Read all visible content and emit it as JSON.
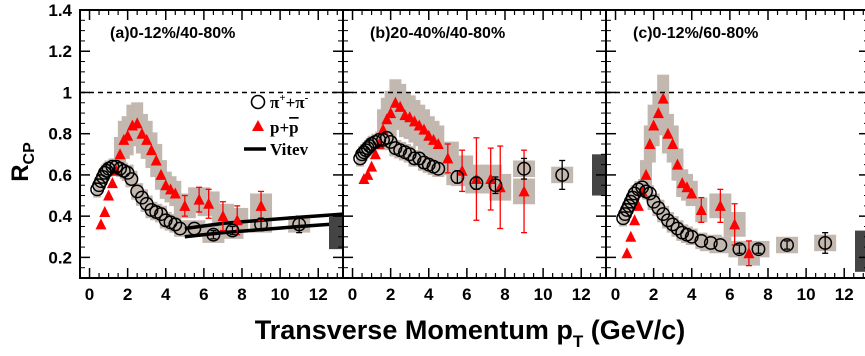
{
  "chart_data": {
    "type": "scatter",
    "xlabel": "Transverse Momentum p",
    "xlabel_sub": "T",
    "xlabel_unit": " (GeV/c)",
    "ylabel": "R",
    "ylabel_sub": "CP",
    "ylim": [
      0.1,
      1.4
    ],
    "xlim": [
      -0.5,
      13.3
    ],
    "yticks": [
      "0.2",
      "0.4",
      "0.6",
      "0.8",
      "1",
      "1.2",
      "1.4"
    ],
    "xticks": [
      "0",
      "2",
      "4",
      "6",
      "8",
      "10",
      "12"
    ],
    "reference_line": 1,
    "legend": {
      "pion": {
        "text": "π",
        "sup1": "+",
        "mid": "+π",
        "sup2": "-"
      },
      "proton": {
        "text": "p+",
        "bar": "p"
      },
      "theory": {
        "text": "Vitev"
      }
    },
    "colors": {
      "pion": "#000000",
      "proton": "#ff0000",
      "systematics": "#c2b8b0",
      "norm_box": "#444444"
    },
    "panels": [
      {
        "label": "(a)0-12%/40-80%",
        "pion": [
          [
            0.4,
            0.53
          ],
          [
            0.5,
            0.55
          ],
          [
            0.6,
            0.57
          ],
          [
            0.7,
            0.59
          ],
          [
            0.8,
            0.61
          ],
          [
            0.9,
            0.62
          ],
          [
            1.0,
            0.63
          ],
          [
            1.2,
            0.64
          ],
          [
            1.4,
            0.64
          ],
          [
            1.6,
            0.63
          ],
          [
            1.8,
            0.62
          ],
          [
            2.0,
            0.61
          ],
          [
            2.2,
            0.58
          ],
          [
            2.5,
            0.52
          ],
          [
            2.75,
            0.49
          ],
          [
            3.0,
            0.46
          ],
          [
            3.25,
            0.43
          ],
          [
            3.5,
            0.42
          ],
          [
            3.75,
            0.41
          ],
          [
            4.0,
            0.38
          ],
          [
            4.25,
            0.37
          ],
          [
            4.5,
            0.36
          ],
          [
            4.75,
            0.34
          ],
          [
            5.5,
            0.34
          ],
          [
            6.5,
            0.31
          ],
          [
            7.5,
            0.33
          ],
          [
            9.0,
            0.36
          ],
          [
            11.0,
            0.36
          ]
        ],
        "pion_err": [
          0,
          0,
          0,
          0,
          0,
          0,
          0,
          0,
          0,
          0,
          0,
          0,
          0,
          0,
          0,
          0,
          0,
          0,
          0,
          0,
          0,
          0,
          0,
          0,
          0.02,
          0.02,
          0.03,
          0.04
        ],
        "proton": [
          [
            0.6,
            0.36
          ],
          [
            0.8,
            0.42
          ],
          [
            1.0,
            0.5
          ],
          [
            1.2,
            0.56
          ],
          [
            1.4,
            0.62
          ],
          [
            1.6,
            0.7
          ],
          [
            1.8,
            0.77
          ],
          [
            2.0,
            0.79
          ],
          [
            2.25,
            0.84
          ],
          [
            2.5,
            0.85
          ],
          [
            2.75,
            0.8
          ],
          [
            3.0,
            0.77
          ],
          [
            3.25,
            0.72
          ],
          [
            3.5,
            0.67
          ],
          [
            3.75,
            0.6
          ],
          [
            4.0,
            0.55
          ],
          [
            4.25,
            0.53
          ],
          [
            4.5,
            0.51
          ],
          [
            5.0,
            0.45
          ],
          [
            5.75,
            0.48
          ],
          [
            6.25,
            0.46
          ],
          [
            7.0,
            0.4
          ],
          [
            7.75,
            0.38
          ],
          [
            9.0,
            0.45
          ]
        ],
        "proton_err": [
          0,
          0,
          0,
          0,
          0,
          0,
          0,
          0,
          0,
          0,
          0,
          0,
          0,
          0,
          0,
          0,
          0,
          0,
          0.05,
          0.06,
          0.07,
          0.07,
          0.07,
          0.07
        ],
        "theory": [
          [
            [
              5,
              0.34
            ],
            [
              7,
              0.365
            ],
            [
              9,
              0.38
            ],
            [
              11,
              0.395
            ],
            [
              13.3,
              0.41
            ]
          ],
          [
            [
              5,
              0.3
            ],
            [
              7,
              0.32
            ],
            [
              9,
              0.335
            ],
            [
              11,
              0.35
            ],
            [
              13.3,
              0.365
            ]
          ]
        ],
        "norm_box": [
          0.24,
          0.4
        ]
      },
      {
        "label": "(b)20-40%/40-80%",
        "pion": [
          [
            0.4,
            0.68
          ],
          [
            0.5,
            0.7
          ],
          [
            0.6,
            0.71
          ],
          [
            0.7,
            0.72
          ],
          [
            0.8,
            0.73
          ],
          [
            0.9,
            0.74
          ],
          [
            1.0,
            0.75
          ],
          [
            1.2,
            0.76
          ],
          [
            1.4,
            0.77
          ],
          [
            1.6,
            0.77
          ],
          [
            1.8,
            0.78
          ],
          [
            2.0,
            0.76
          ],
          [
            2.25,
            0.73
          ],
          [
            2.5,
            0.72
          ],
          [
            2.75,
            0.71
          ],
          [
            3.0,
            0.7
          ],
          [
            3.25,
            0.68
          ],
          [
            3.5,
            0.68
          ],
          [
            3.75,
            0.66
          ],
          [
            4.0,
            0.65
          ],
          [
            4.25,
            0.64
          ],
          [
            4.5,
            0.63
          ],
          [
            5.5,
            0.59
          ],
          [
            6.5,
            0.56
          ],
          [
            7.5,
            0.55
          ],
          [
            9.0,
            0.63
          ],
          [
            11.0,
            0.6
          ]
        ],
        "pion_err": [
          0,
          0,
          0,
          0,
          0,
          0,
          0,
          0,
          0,
          0,
          0,
          0,
          0,
          0,
          0,
          0,
          0,
          0,
          0,
          0,
          0,
          0,
          0.03,
          0.03,
          0.04,
          0.05,
          0.07
        ],
        "proton": [
          [
            0.6,
            0.58
          ],
          [
            0.8,
            0.6
          ],
          [
            1.0,
            0.64
          ],
          [
            1.2,
            0.7
          ],
          [
            1.4,
            0.75
          ],
          [
            1.6,
            0.82
          ],
          [
            1.8,
            0.87
          ],
          [
            2.0,
            0.9
          ],
          [
            2.25,
            0.95
          ],
          [
            2.5,
            0.93
          ],
          [
            2.75,
            0.89
          ],
          [
            3.0,
            0.88
          ],
          [
            3.25,
            0.86
          ],
          [
            3.5,
            0.84
          ],
          [
            3.75,
            0.82
          ],
          [
            4.0,
            0.79
          ],
          [
            4.25,
            0.77
          ],
          [
            4.5,
            0.75
          ],
          [
            5.0,
            0.68
          ],
          [
            5.75,
            0.62
          ],
          [
            6.5,
            0.58
          ],
          [
            7.25,
            0.58
          ],
          [
            7.75,
            0.54
          ],
          [
            9.0,
            0.52
          ]
        ],
        "proton_err": [
          0,
          0,
          0,
          0,
          0,
          0,
          0,
          0,
          0,
          0,
          0,
          0,
          0,
          0,
          0,
          0,
          0,
          0,
          0.07,
          0.1,
          0.2,
          0.15,
          0.2,
          0.2
        ],
        "norm_box": [
          0.5,
          0.7
        ]
      },
      {
        "label": "(c)0-12%/60-80%",
        "pion": [
          [
            0.4,
            0.39
          ],
          [
            0.5,
            0.41
          ],
          [
            0.6,
            0.43
          ],
          [
            0.7,
            0.45
          ],
          [
            0.8,
            0.47
          ],
          [
            0.9,
            0.49
          ],
          [
            1.0,
            0.51
          ],
          [
            1.2,
            0.53
          ],
          [
            1.4,
            0.54
          ],
          [
            1.6,
            0.52
          ],
          [
            1.8,
            0.51
          ],
          [
            2.0,
            0.47
          ],
          [
            2.25,
            0.44
          ],
          [
            2.5,
            0.41
          ],
          [
            2.75,
            0.38
          ],
          [
            3.0,
            0.36
          ],
          [
            3.25,
            0.34
          ],
          [
            3.5,
            0.32
          ],
          [
            3.75,
            0.31
          ],
          [
            4.0,
            0.3
          ],
          [
            4.5,
            0.28
          ],
          [
            5.0,
            0.27
          ],
          [
            5.5,
            0.26
          ],
          [
            6.5,
            0.24
          ],
          [
            7.5,
            0.24
          ],
          [
            9.0,
            0.26
          ],
          [
            11.0,
            0.27
          ]
        ],
        "pion_err": [
          0,
          0,
          0,
          0,
          0,
          0,
          0,
          0,
          0,
          0,
          0,
          0,
          0,
          0,
          0,
          0,
          0,
          0,
          0,
          0,
          0,
          0,
          0,
          0.02,
          0.02,
          0.02,
          0.05
        ],
        "proton": [
          [
            0.6,
            0.22
          ],
          [
            0.8,
            0.3
          ],
          [
            1.0,
            0.38
          ],
          [
            1.2,
            0.45
          ],
          [
            1.4,
            0.52
          ],
          [
            1.6,
            0.6
          ],
          [
            1.8,
            0.75
          ],
          [
            2.0,
            0.84
          ],
          [
            2.25,
            0.9
          ],
          [
            2.5,
            0.97
          ],
          [
            2.75,
            0.8
          ],
          [
            3.0,
            0.75
          ],
          [
            3.25,
            0.65
          ],
          [
            3.5,
            0.56
          ],
          [
            3.75,
            0.54
          ],
          [
            4.0,
            0.51
          ],
          [
            4.5,
            0.43
          ],
          [
            5.5,
            0.45
          ],
          [
            6.25,
            0.36
          ],
          [
            7.0,
            0.22
          ]
        ],
        "proton_err": [
          0,
          0,
          0,
          0,
          0,
          0,
          0,
          0,
          0,
          0,
          0,
          0,
          0,
          0,
          0,
          0,
          0.06,
          0.08,
          0.1,
          0.06
        ],
        "norm_box": [
          0.13,
          0.33
        ]
      }
    ]
  }
}
